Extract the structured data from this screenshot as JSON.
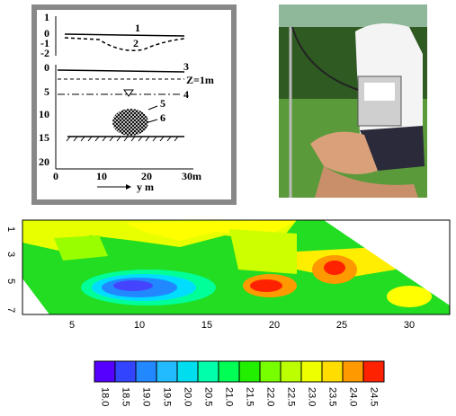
{
  "diagram": {
    "top_y_ticks": [
      "1",
      "0",
      "-1",
      "-2"
    ],
    "bottom_y_ticks": [
      "0",
      "5",
      "10",
      "15",
      "20"
    ],
    "x_ticks": [
      "0",
      "10",
      "20",
      "30m"
    ],
    "labels": [
      "1",
      "2",
      "3",
      "Z=1m",
      "4",
      "5",
      "6"
    ],
    "x_axis_label": "y m"
  },
  "contour": {
    "x_ticks": [
      "5",
      "10",
      "15",
      "20",
      "25",
      "30"
    ],
    "y_ticks": [
      "1",
      "3",
      "5",
      "7"
    ],
    "colorbar": [
      "18.0",
      "18.5",
      "19.0",
      "19.5",
      "20.0",
      "20.5",
      "21.0",
      "21.5",
      "22.0",
      "22.5",
      "23.0",
      "23.5",
      "24.0",
      "24.5"
    ]
  }
}
